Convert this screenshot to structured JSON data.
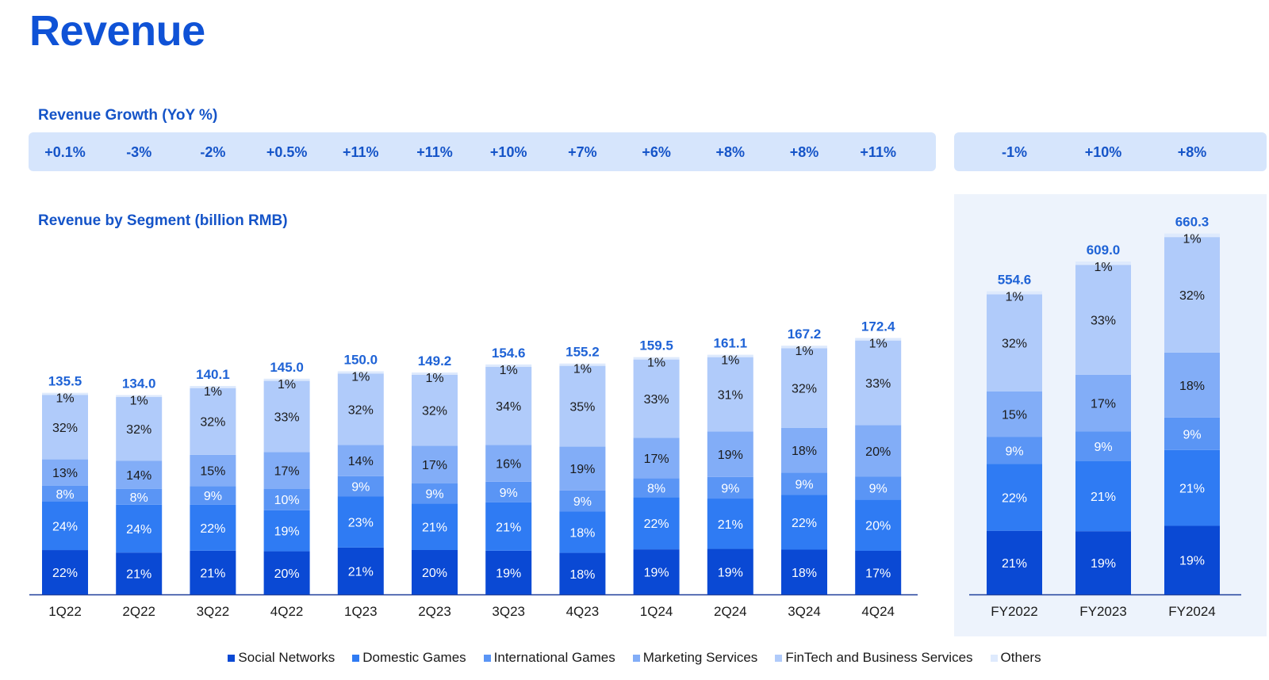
{
  "page": {
    "title": "Revenue"
  },
  "headings": {
    "growth": "Revenue Growth (YoY %)",
    "segment": "Revenue by Segment (billion RMB)"
  },
  "chart_data": {
    "type": "bar",
    "stacked": true,
    "title": "Revenue by Segment (billion RMB)",
    "quarterly": {
      "categories": [
        "1Q22",
        "2Q22",
        "3Q22",
        "4Q22",
        "1Q23",
        "2Q23",
        "3Q23",
        "4Q23",
        "1Q24",
        "2Q24",
        "3Q24",
        "4Q24"
      ],
      "totals": [
        135.5,
        134.0,
        140.1,
        145.0,
        150.0,
        149.2,
        154.6,
        155.2,
        159.5,
        161.1,
        167.2,
        172.4
      ],
      "totals_labels": [
        "135.5",
        "134.0",
        "140.1",
        "145.0",
        "150.0",
        "149.2",
        "154.6",
        "155.2",
        "159.5",
        "161.1",
        "167.2",
        "172.4"
      ],
      "growth": [
        "+0.1%",
        "-3%",
        "-2%",
        "+0.5%",
        "+11%",
        "+11%",
        "+10%",
        "+7%",
        "+6%",
        "+8%",
        "+8%",
        "+11%"
      ],
      "series": [
        {
          "name": "Social Networks",
          "values": [
            22,
            21,
            21,
            20,
            21,
            20,
            19,
            18,
            19,
            19,
            18,
            17
          ]
        },
        {
          "name": "Domestic Games",
          "values": [
            24,
            24,
            22,
            19,
            23,
            21,
            21,
            18,
            22,
            21,
            22,
            20
          ]
        },
        {
          "name": "International Games",
          "values": [
            8,
            8,
            9,
            10,
            9,
            9,
            9,
            9,
            8,
            9,
            9,
            9
          ]
        },
        {
          "name": "Marketing Services",
          "values": [
            13,
            14,
            15,
            17,
            14,
            17,
            16,
            19,
            17,
            19,
            18,
            20
          ]
        },
        {
          "name": "FinTech and Business Services",
          "values": [
            32,
            32,
            32,
            33,
            32,
            32,
            34,
            35,
            33,
            31,
            32,
            33
          ]
        },
        {
          "name": "Others",
          "values": [
            1,
            1,
            1,
            1,
            1,
            1,
            1,
            1,
            1,
            1,
            1,
            1
          ]
        }
      ]
    },
    "annual": {
      "categories": [
        "FY2022",
        "FY2023",
        "FY2024"
      ],
      "totals": [
        554.6,
        609.0,
        660.3
      ],
      "totals_labels": [
        "554.6",
        "609.0",
        "660.3"
      ],
      "growth": [
        "-1%",
        "+10%",
        "+8%"
      ],
      "series": [
        {
          "name": "Social Networks",
          "values": [
            21,
            19,
            19
          ]
        },
        {
          "name": "Domestic Games",
          "values": [
            22,
            21,
            21
          ]
        },
        {
          "name": "International Games",
          "values": [
            9,
            9,
            9
          ]
        },
        {
          "name": "Marketing Services",
          "values": [
            15,
            17,
            18
          ]
        },
        {
          "name": "FinTech and Business Services",
          "values": [
            32,
            33,
            32
          ]
        },
        {
          "name": "Others",
          "values": [
            1,
            1,
            1
          ]
        }
      ]
    },
    "legend_position": "bottom-center",
    "colors": {
      "Social Networks": "#0a49d4",
      "Domestic Games": "#2f7bf3",
      "International Games": "#5a95f5",
      "Marketing Services": "#82adf7",
      "FinTech and Business Services": "#b0cbfa",
      "Others": "#deeafd"
    },
    "label_colors": {
      "dark": "#ffffff",
      "light": "#1a1a1a",
      "total": "#1f63d6",
      "growth": "#1554c8",
      "axis": "#1f3f9b"
    }
  }
}
